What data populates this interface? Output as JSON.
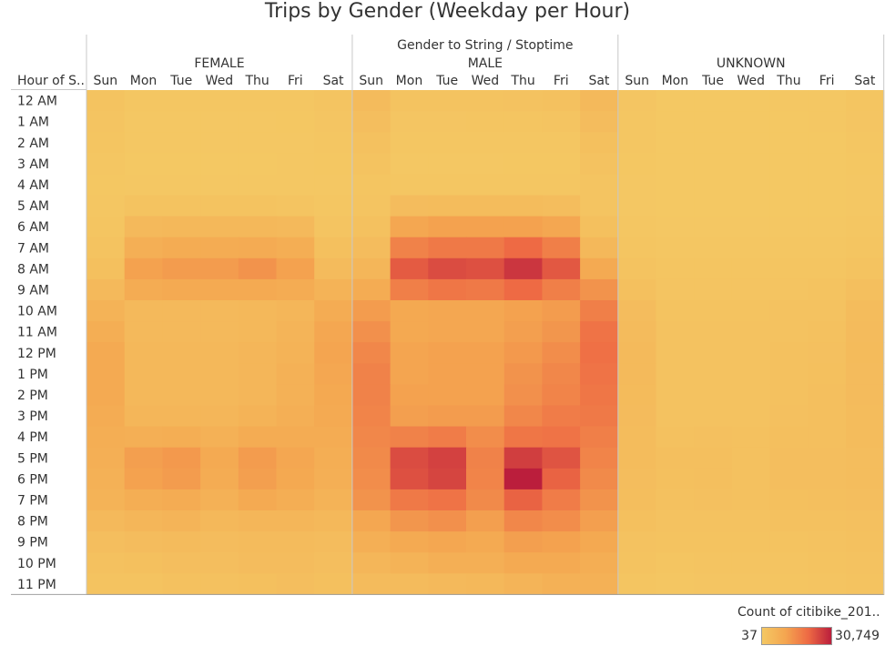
{
  "chart_data": {
    "type": "heatmap",
    "title": "Trips by Gender (Weekday per Hour)",
    "column_header": "Gender to String / Stoptime",
    "row_header": "Hour of S..",
    "genders": [
      "FEMALE",
      "MALE",
      "UNKNOWN"
    ],
    "days": [
      "Sun",
      "Mon",
      "Tue",
      "Wed",
      "Thu",
      "Fri",
      "Sat"
    ],
    "hours": [
      "12 AM",
      "1 AM",
      "2 AM",
      "3 AM",
      "4 AM",
      "5 AM",
      "6 AM",
      "7 AM",
      "8 AM",
      "9 AM",
      "10 AM",
      "11 AM",
      "12 PM",
      "1 PM",
      "2 PM",
      "3 PM",
      "4 PM",
      "5 PM",
      "6 PM",
      "7 PM",
      "8 PM",
      "9 PM",
      "10 PM",
      "11 PM"
    ],
    "values": {
      "FEMALE": [
        [
          1600,
          500,
          500,
          500,
          600,
          700,
          1200
        ],
        [
          1200,
          300,
          300,
          300,
          300,
          400,
          800
        ],
        [
          900,
          200,
          200,
          200,
          200,
          200,
          600
        ],
        [
          600,
          100,
          100,
          100,
          100,
          200,
          400
        ],
        [
          400,
          200,
          200,
          200,
          200,
          200,
          300
        ],
        [
          500,
          1400,
          1500,
          1500,
          1400,
          1300,
          500
        ],
        [
          900,
          4500,
          5000,
          5000,
          4800,
          4500,
          1200
        ],
        [
          1500,
          7500,
          8500,
          8500,
          8800,
          8000,
          2500
        ],
        [
          2500,
          11000,
          12000,
          12000,
          13500,
          11000,
          4000
        ],
        [
          4500,
          8500,
          9000,
          9000,
          9000,
          8500,
          6500
        ],
        [
          6500,
          4500,
          4500,
          4500,
          5000,
          5500,
          8500
        ],
        [
          8000,
          4500,
          4500,
          4500,
          5000,
          6000,
          10000
        ],
        [
          9000,
          5000,
          5000,
          5000,
          5500,
          6500,
          10500
        ],
        [
          9000,
          5000,
          5000,
          5000,
          5500,
          7000,
          10000
        ],
        [
          9000,
          5000,
          5000,
          5000,
          5500,
          7000,
          9500
        ],
        [
          8500,
          5500,
          5500,
          5500,
          6500,
          7500,
          9000
        ],
        [
          8000,
          7500,
          8000,
          7000,
          8500,
          8500,
          8500
        ],
        [
          7500,
          11500,
          12500,
          9000,
          12000,
          10000,
          8000
        ],
        [
          7000,
          11000,
          12000,
          8500,
          11500,
          9500,
          7500
        ],
        [
          6500,
          8000,
          8500,
          7000,
          9000,
          8000,
          6500
        ],
        [
          4500,
          5500,
          6000,
          5000,
          5500,
          5500,
          5000
        ],
        [
          3000,
          3500,
          4000,
          3500,
          4000,
          4000,
          3500
        ],
        [
          2200,
          2500,
          3000,
          3000,
          3500,
          3500,
          3000
        ],
        [
          1500,
          1500,
          2000,
          2000,
          2500,
          3000,
          2500
        ]
      ],
      "MALE": [
        [
          4000,
          1400,
          1500,
          1600,
          1800,
          2200,
          4500
        ],
        [
          3000,
          800,
          800,
          900,
          1000,
          1200,
          3500
        ],
        [
          2200,
          500,
          500,
          500,
          600,
          700,
          2500
        ],
        [
          1500,
          300,
          300,
          300,
          400,
          400,
          1800
        ],
        [
          1000,
          500,
          500,
          500,
          500,
          500,
          1200
        ],
        [
          1200,
          3500,
          3800,
          3800,
          3700,
          3300,
          1300
        ],
        [
          2000,
          10000,
          11000,
          11000,
          11000,
          10000,
          2500
        ],
        [
          3500,
          16500,
          18000,
          18000,
          20500,
          17000,
          5000
        ],
        [
          5500,
          22500,
          24500,
          24000,
          27500,
          23000,
          9000
        ],
        [
          8500,
          17000,
          18500,
          18000,
          20500,
          17000,
          13500
        ],
        [
          12000,
          9500,
          10000,
          10000,
          11000,
          12000,
          17000
        ],
        [
          14000,
          9500,
          10000,
          10000,
          11500,
          13000,
          19000
        ],
        [
          15500,
          10500,
          11000,
          11000,
          12500,
          14500,
          19500
        ],
        [
          16500,
          10500,
          11000,
          11000,
          13500,
          15500,
          19000
        ],
        [
          16500,
          11000,
          11000,
          11000,
          14000,
          16000,
          18500
        ],
        [
          16000,
          11500,
          12000,
          12000,
          15500,
          17500,
          18000
        ],
        [
          15500,
          16500,
          17500,
          14500,
          18500,
          19000,
          17000
        ],
        [
          15000,
          24500,
          26000,
          16500,
          26500,
          23500,
          16000
        ],
        [
          14500,
          24000,
          25500,
          16000,
          30749,
          21500,
          15000
        ],
        [
          13500,
          18000,
          19000,
          15000,
          21500,
          17500,
          13500
        ],
        [
          10000,
          13000,
          14000,
          11500,
          15500,
          14500,
          11500
        ],
        [
          7500,
          9000,
          10000,
          9000,
          11500,
          11000,
          9500
        ],
        [
          5500,
          6500,
          7500,
          7500,
          9000,
          9000,
          8000
        ],
        [
          4000,
          4000,
          4500,
          5000,
          6000,
          7000,
          7000
        ]
      ],
      "UNKNOWN": [
        [
          800,
          150,
          150,
          150,
          200,
          300,
          1000
        ],
        [
          700,
          100,
          100,
          100,
          100,
          200,
          800
        ],
        [
          500,
          80,
          80,
          80,
          80,
          100,
          600
        ],
        [
          400,
          50,
          50,
          50,
          50,
          50,
          400
        ],
        [
          300,
          37,
          37,
          37,
          37,
          50,
          300
        ],
        [
          300,
          100,
          100,
          100,
          100,
          100,
          300
        ],
        [
          500,
          300,
          300,
          300,
          300,
          300,
          500
        ],
        [
          900,
          600,
          700,
          700,
          700,
          700,
          900
        ],
        [
          1500,
          900,
          1000,
          1000,
          1000,
          1000,
          1600
        ],
        [
          2500,
          1200,
          1300,
          1300,
          1300,
          1400,
          2600
        ],
        [
          3500,
          1500,
          1500,
          1500,
          1700,
          1900,
          3600
        ],
        [
          4000,
          1700,
          1700,
          1700,
          1900,
          2200,
          4000
        ],
        [
          4200,
          1800,
          1800,
          1800,
          2000,
          2400,
          4100
        ],
        [
          4200,
          1800,
          1800,
          1800,
          2100,
          2500,
          4000
        ],
        [
          4100,
          1800,
          1800,
          1800,
          2200,
          2600,
          3900
        ],
        [
          4000,
          1900,
          1900,
          1900,
          2300,
          2700,
          3800
        ],
        [
          3800,
          2200,
          2300,
          2100,
          2600,
          2800,
          3600
        ],
        [
          3600,
          2600,
          2700,
          2200,
          2900,
          3000,
          3400
        ],
        [
          3400,
          2500,
          2700,
          2100,
          2900,
          2900,
          3200
        ],
        [
          3100,
          2200,
          2300,
          2000,
          2500,
          2600,
          2900
        ],
        [
          2500,
          1800,
          1900,
          1700,
          2000,
          2100,
          2400
        ],
        [
          1900,
          1400,
          1500,
          1400,
          1600,
          1700,
          2000
        ],
        [
          1400,
          1000,
          1100,
          1100,
          1300,
          1400,
          1700
        ],
        [
          1000,
          700,
          800,
          800,
          900,
          1100,
          1500
        ]
      ]
    },
    "color_scale": {
      "min": 37,
      "max": 30749,
      "colors": [
        "#f4c863",
        "#f4a650",
        "#ee6a44",
        "#bb1e3c"
      ]
    },
    "legend": {
      "title": "Count of citibike_201..",
      "min_label": "37",
      "max_label": "30,749",
      "placement": "bottom-right"
    }
  }
}
